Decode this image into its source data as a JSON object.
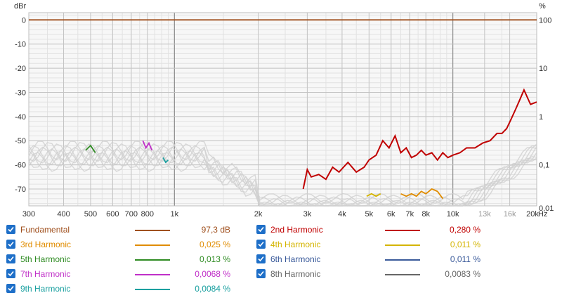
{
  "chart_data": {
    "type": "line",
    "left_axis_label": "dBr",
    "right_axis_label": "%",
    "x_unit_label": "Hz",
    "xscale": "log",
    "xlim": [
      300,
      20000
    ],
    "ylim": [
      -77,
      3
    ],
    "x_ticks": [
      300,
      400,
      500,
      600,
      700,
      800,
      1000,
      2000,
      3000,
      4000,
      5000,
      6000,
      7000,
      8000,
      10000,
      13000,
      16000,
      20000
    ],
    "x_tick_labels": [
      "300",
      "400",
      "500",
      "600",
      "700",
      "800",
      "1k",
      "2k",
      "3k",
      "4k",
      "5k",
      "6k",
      "7k",
      "8k",
      "10k",
      "13k",
      "16k",
      "20k"
    ],
    "y_ticks_left": [
      0,
      -10,
      -20,
      -30,
      -40,
      -50,
      -60,
      -70
    ],
    "y_tick_labels_left": [
      "0",
      "-10",
      "-20",
      "-30",
      "-40",
      "-50",
      "-60",
      "-70"
    ],
    "y_ticks_right_db": [
      0,
      -20,
      -40,
      -60,
      -80
    ],
    "y_tick_labels_right": [
      "100",
      "10",
      "1",
      "0,1",
      "0,01"
    ],
    "grid": true,
    "series": [
      {
        "name": "Fundamental",
        "color": "#a0501e",
        "x": [
          300,
          20000
        ],
        "y": [
          0,
          0
        ]
      },
      {
        "name": "2nd Harmonic",
        "color": "#c00000",
        "x": [
          2900,
          3000,
          3100,
          3300,
          3500,
          3700,
          3900,
          4200,
          4500,
          4800,
          5000,
          5300,
          5600,
          5900,
          6200,
          6500,
          6800,
          7100,
          7400,
          7700,
          8000,
          8400,
          8800,
          9200,
          9600,
          10000,
          10600,
          11200,
          12000,
          12800,
          13600,
          14400,
          15000,
          15600,
          16200,
          16800,
          17400,
          18000,
          19000,
          20000
        ],
        "y": [
          -70,
          -62,
          -65,
          -64,
          -66,
          -61,
          -63,
          -59,
          -63,
          -61,
          -58,
          -56,
          -50,
          -53,
          -48,
          -55,
          -53,
          -57,
          -56,
          -54,
          -56,
          -55,
          -58,
          -55,
          -57,
          -56,
          -55,
          -53,
          -53,
          -51,
          -50,
          -47,
          -47,
          -45,
          -41,
          -37,
          -33,
          -29,
          -35,
          -34
        ]
      },
      {
        "name": "3rd Harmonic",
        "color": "#e08c00",
        "x": [
          6500,
          6800,
          7100,
          7400,
          7700,
          8000,
          8400,
          8800,
          9200
        ],
        "y": [
          -72,
          -73,
          -72,
          -73,
          -71,
          -72,
          -70,
          -71,
          -74
        ]
      },
      {
        "name": "4th Harmonic",
        "color": "#d4b400",
        "x": [
          4900,
          5100,
          5300,
          5500
        ],
        "y": [
          -73,
          -72,
          -73,
          -72
        ]
      },
      {
        "name": "5th Harmonic",
        "color": "#2e8b22",
        "x": [
          480,
          500,
          520
        ],
        "y": [
          -54,
          -52,
          -55
        ]
      },
      {
        "name": "7th Harmonic",
        "color": "#c030c8",
        "x": [
          770,
          790,
          810,
          830
        ],
        "y": [
          -50,
          -53,
          -51,
          -54
        ]
      },
      {
        "name": "9th Harmonic",
        "color": "#1aa0a0",
        "x": [
          910,
          930,
          950
        ],
        "y": [
          -57,
          -59,
          -58
        ]
      }
    ]
  },
  "legend": [
    {
      "name": "Fundamental",
      "value": "97,3 dB",
      "color": "#a0501e",
      "text_color": "#a0501e",
      "value_color": "#a0501e"
    },
    {
      "name": "2nd Harmonic",
      "value": "0,280 %",
      "color": "#c00000",
      "text_color": "#c00000",
      "value_color": "#c00000"
    },
    {
      "name": "3rd Harmonic",
      "value": "0,025 %",
      "color": "#e08c00",
      "text_color": "#e08c00",
      "value_color": "#e08c00"
    },
    {
      "name": "4th Harmonic",
      "value": "0,011 %",
      "color": "#d4b400",
      "text_color": "#d4b400",
      "value_color": "#d4b400"
    },
    {
      "name": "5th Harmonic",
      "value": "0,013 %",
      "color": "#2e8b22",
      "text_color": "#2e8b22",
      "value_color": "#2e8b22"
    },
    {
      "name": "6th Harmonic",
      "value": "0,011 %",
      "color": "#3a5a9a",
      "text_color": "#3a5a9a",
      "value_color": "#3a5a9a"
    },
    {
      "name": "7th Harmonic",
      "value": "0,0068 %",
      "color": "#c030c8",
      "text_color": "#c030c8",
      "value_color": "#c030c8"
    },
    {
      "name": "8th Harmonic",
      "value": "0,0083 %",
      "color": "#666666",
      "text_color": "#666666",
      "value_color": "#666666"
    },
    {
      "name": "9th Harmonic",
      "value": "0,0084 %",
      "color": "#1aa0a0",
      "text_color": "#1aa0a0",
      "value_color": "#1aa0a0"
    }
  ]
}
